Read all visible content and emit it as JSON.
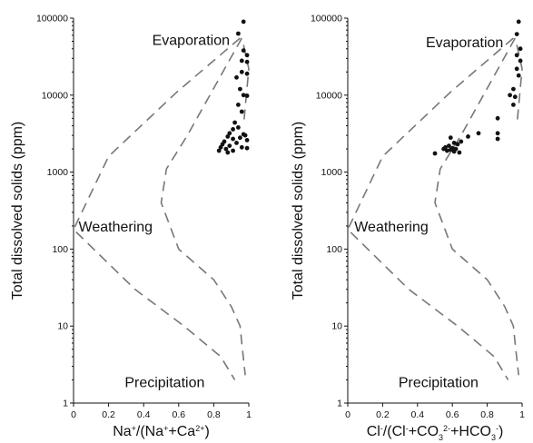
{
  "chart_data": [
    {
      "type": "scatter",
      "ylabel": "Total dissolved solids (ppm)",
      "xlabel_html": "Na<tspan baseline-shift=\"super\" font-size=\"9\">+</tspan>/(Na<tspan baseline-shift=\"super\" font-size=\"9\">+</tspan>+Ca<tspan baseline-shift=\"super\" font-size=\"9\">2+</tspan>)",
      "xlabel_text": "Na+/(Na++Ca2+)",
      "x_ticks": [
        "0",
        "0.2",
        "0.4",
        "0.6",
        "0.8",
        "1"
      ],
      "y_ticks": [
        "1",
        "10",
        "100",
        "1000",
        "10000",
        "100000"
      ],
      "xlim": [
        0,
        1
      ],
      "ylim": [
        1,
        100000
      ],
      "y_scale": "log",
      "grid": false,
      "annotations": [
        {
          "text": "Evaporation",
          "x": 0.67,
          "y": 45000
        },
        {
          "text": "Weathering",
          "x": 0.24,
          "y": 170
        },
        {
          "text": "Precipitation",
          "x": 0.52,
          "y": 1.6
        }
      ],
      "envelope": [
        [
          [
            0.96,
            55000
          ],
          [
            0.65,
            3000
          ],
          [
            0.53,
            1100
          ],
          [
            0.5,
            400
          ],
          [
            0.6,
            100
          ],
          [
            0.8,
            40
          ],
          [
            0.9,
            18
          ],
          [
            0.95,
            10
          ],
          [
            0.96,
            6
          ],
          [
            0.98,
            2.3
          ]
        ],
        [
          [
            0.95,
            55000
          ],
          [
            0.59,
            11000
          ],
          [
            0.2,
            1600
          ],
          [
            0.0,
            180
          ],
          [
            0.35,
            30
          ],
          [
            0.63,
            10
          ],
          [
            0.84,
            4
          ],
          [
            0.92,
            2
          ]
        ],
        [
          [
            0.97,
            45000
          ],
          [
            1.0,
            22000
          ],
          [
            0.97,
            4000
          ]
        ]
      ],
      "points": [
        [
          0.97,
          90000
        ],
        [
          0.94,
          63000
        ],
        [
          0.97,
          38000
        ],
        [
          0.99,
          33000
        ],
        [
          0.96,
          28000
        ],
        [
          0.99,
          27000
        ],
        [
          0.96,
          20000
        ],
        [
          0.99,
          19000
        ],
        [
          0.93,
          17000
        ],
        [
          0.95,
          12000
        ],
        [
          0.97,
          10000
        ],
        [
          0.99,
          9800
        ],
        [
          0.94,
          7500
        ],
        [
          0.96,
          6100
        ],
        [
          0.92,
          4400
        ],
        [
          0.94,
          3800
        ],
        [
          0.91,
          3600
        ],
        [
          0.89,
          3200
        ],
        [
          0.97,
          3100
        ],
        [
          0.98,
          3000
        ],
        [
          0.88,
          2900
        ],
        [
          0.95,
          2800
        ],
        [
          0.91,
          2700
        ],
        [
          0.99,
          2600
        ],
        [
          0.86,
          2500
        ],
        [
          0.93,
          2400
        ],
        [
          0.85,
          2300
        ],
        [
          0.89,
          2200
        ],
        [
          0.84,
          2100
        ],
        [
          0.96,
          2100
        ],
        [
          0.99,
          2050
        ],
        [
          0.87,
          2000
        ],
        [
          0.91,
          1900
        ],
        [
          0.83,
          1900
        ],
        [
          0.88,
          1800
        ]
      ]
    },
    {
      "type": "scatter",
      "ylabel": "Total dissolved solids (ppm)",
      "xlabel_html": "Cl<tspan baseline-shift=\"super\" font-size=\"9\">-</tspan>/(Cl<tspan baseline-shift=\"super\" font-size=\"9\">-</tspan>+CO<tspan baseline-shift=\"sub\" font-size=\"9\">3</tspan><tspan baseline-shift=\"super\" font-size=\"9\">2-</tspan>+HCO<tspan baseline-shift=\"sub\" font-size=\"9\">3</tspan><tspan baseline-shift=\"super\" font-size=\"9\">-</tspan>)",
      "xlabel_text": "Cl-/(Cl-+CO32-+HCO3-)",
      "x_ticks": [
        "0",
        "0.2",
        "0.4",
        "0.6",
        "0.8",
        "1"
      ],
      "y_ticks": [
        "1",
        "10",
        "100",
        "1000",
        "10000",
        "100000"
      ],
      "xlim": [
        0,
        1
      ],
      "ylim": [
        1,
        100000
      ],
      "y_scale": "log",
      "grid": false,
      "annotations": [
        {
          "text": "Evaporation",
          "x": 0.67,
          "y": 42000
        },
        {
          "text": "Weathering",
          "x": 0.25,
          "y": 170
        },
        {
          "text": "Precipitation",
          "x": 0.52,
          "y": 1.6
        }
      ],
      "envelope": [
        [
          [
            0.96,
            55000
          ],
          [
            0.65,
            3000
          ],
          [
            0.53,
            1100
          ],
          [
            0.5,
            400
          ],
          [
            0.6,
            100
          ],
          [
            0.8,
            40
          ],
          [
            0.9,
            18
          ],
          [
            0.95,
            10
          ],
          [
            0.96,
            6
          ],
          [
            0.98,
            2.3
          ]
        ],
        [
          [
            0.95,
            55000
          ],
          [
            0.59,
            11000
          ],
          [
            0.2,
            1600
          ],
          [
            0.0,
            180
          ],
          [
            0.35,
            30
          ],
          [
            0.63,
            10
          ],
          [
            0.84,
            4
          ],
          [
            0.92,
            2
          ]
        ],
        [
          [
            0.97,
            45000
          ],
          [
            1.0,
            22000
          ],
          [
            0.97,
            4000
          ]
        ]
      ],
      "points": [
        [
          0.98,
          90000
        ],
        [
          0.97,
          62000
        ],
        [
          0.99,
          40000
        ],
        [
          0.97,
          33000
        ],
        [
          0.99,
          28000
        ],
        [
          0.97,
          22000
        ],
        [
          0.98,
          18000
        ],
        [
          0.95,
          12000
        ],
        [
          0.93,
          10000
        ],
        [
          0.96,
          9500
        ],
        [
          0.95,
          7500
        ],
        [
          0.86,
          5000
        ],
        [
          0.86,
          3200
        ],
        [
          0.75,
          3200
        ],
        [
          0.69,
          2900
        ],
        [
          0.59,
          2800
        ],
        [
          0.65,
          2500
        ],
        [
          0.61,
          2400
        ],
        [
          0.63,
          2300
        ],
        [
          0.58,
          2200
        ],
        [
          0.56,
          2100
        ],
        [
          0.6,
          2050
        ],
        [
          0.62,
          2000
        ],
        [
          0.55,
          2000
        ],
        [
          0.59,
          1950
        ],
        [
          0.57,
          1900
        ],
        [
          0.61,
          1850
        ],
        [
          0.64,
          1800
        ],
        [
          0.5,
          1750
        ],
        [
          0.86,
          2700
        ]
      ]
    }
  ]
}
